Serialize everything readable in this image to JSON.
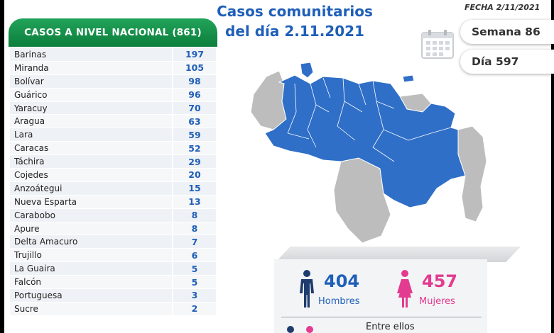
{
  "header": {
    "date_label": "FECHA 2/11/2021",
    "title_line1": "Casos comunitarios",
    "title_line2": "del día 2.11.2021"
  },
  "card": {
    "title": "CASOS A NIVEL NACIONAL (861)"
  },
  "states": [
    {
      "name": "Barinas",
      "value": "197"
    },
    {
      "name": "Miranda",
      "value": "105"
    },
    {
      "name": "Bolívar",
      "value": "98"
    },
    {
      "name": "Guárico",
      "value": "96"
    },
    {
      "name": "Yaracuy",
      "value": "70"
    },
    {
      "name": "Aragua",
      "value": "63"
    },
    {
      "name": "Lara",
      "value": "59"
    },
    {
      "name": "Caracas",
      "value": "52"
    },
    {
      "name": "Táchira",
      "value": "29"
    },
    {
      "name": "Cojedes",
      "value": "20"
    },
    {
      "name": "Anzoátegui",
      "value": "15"
    },
    {
      "name": "Nueva Esparta",
      "value": "13"
    },
    {
      "name": "Carabobo",
      "value": "8"
    },
    {
      "name": "Apure",
      "value": "8"
    },
    {
      "name": "Delta Amacuro",
      "value": "7"
    },
    {
      "name": "Trujillo",
      "value": "6"
    },
    {
      "name": "La Guaira",
      "value": "5"
    },
    {
      "name": "Falcón",
      "value": "5"
    },
    {
      "name": "Portuguesa",
      "value": "3"
    },
    {
      "name": "Sucre",
      "value": "2"
    }
  ],
  "week": "Semana 86",
  "day": "Día 597",
  "men": {
    "count": "404",
    "label": "Hombres"
  },
  "women": {
    "count": "457",
    "label": "Mujeres"
  },
  "entre": "Entre ellos",
  "colors": {
    "blue": "#1f5fb8",
    "green": "#0b7e3b",
    "pink": "#e23b8f",
    "map_blue": "#2f6fc7",
    "map_gray": "#bdbdbd"
  },
  "icons": [
    "calendar-icon",
    "man-icon",
    "woman-icon",
    "venezuela-map"
  ]
}
